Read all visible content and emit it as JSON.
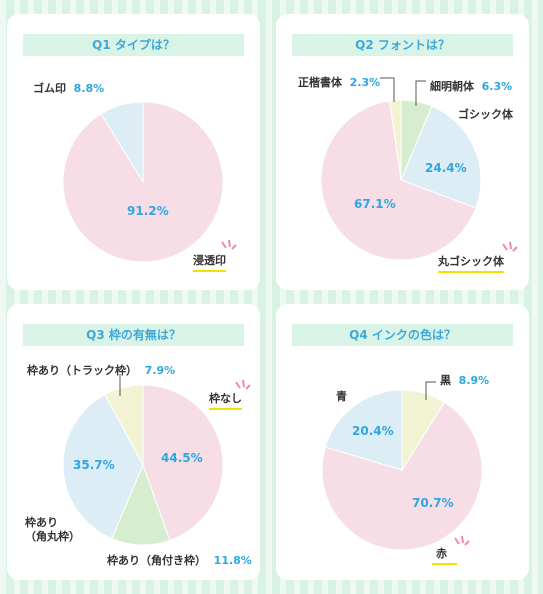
{
  "colors": {
    "pink": "#f6dde6",
    "blue": "#dcedf5",
    "green": "#d7edd0",
    "yellow": "#f1f3d3",
    "text_blue": "#2ea7e0",
    "underline": "#f2e200",
    "accent_pink": "#f08aa8"
  },
  "chart_data": [
    {
      "type": "pie",
      "title": "Q1 タイプは？",
      "slices": [
        {
          "label": "浸透印",
          "value": 91.2,
          "value_text": "91.2%",
          "color": "#f6dde6"
        },
        {
          "label": "ゴム印",
          "value": 8.8,
          "value_text": "8.8%",
          "color": "#dcedf5"
        }
      ]
    },
    {
      "type": "pie",
      "title": "Q2 フォントは？",
      "slices": [
        {
          "label": "細明朝体",
          "value": 6.3,
          "value_text": "6.3%",
          "color": "#d7edd0"
        },
        {
          "label": "ゴシック体",
          "value": 24.4,
          "value_text": "24.4%",
          "color": "#dcedf5"
        },
        {
          "label": "丸ゴシック体",
          "value": 67.1,
          "value_text": "67.1%",
          "color": "#f6dde6"
        },
        {
          "label": "正楷書体",
          "value": 2.3,
          "value_text": "2.3%",
          "color": "#f1f3d3"
        }
      ]
    },
    {
      "type": "pie",
      "title": "Q3 枠の有無は？",
      "slices": [
        {
          "label": "枠なし",
          "value": 44.5,
          "value_text": "44.5%",
          "color": "#f6dde6"
        },
        {
          "label": "枠あり（角付き枠）",
          "value": 11.8,
          "value_text": "11.8%",
          "color": "#d7edd0"
        },
        {
          "label": "枠あり（角丸枠）",
          "label_lines": [
            "枠あり",
            "（角丸枠）"
          ],
          "value": 35.7,
          "value_text": "35.7%",
          "color": "#dcedf5"
        },
        {
          "label": "枠あり（トラック枠）",
          "value": 7.9,
          "value_text": "7.9%",
          "color": "#f1f3d3"
        }
      ]
    },
    {
      "type": "pie",
      "title": "Q4 インクの色は？",
      "slices": [
        {
          "label": "黒",
          "value": 8.9,
          "value_text": "8.9%",
          "color": "#f1f3d3"
        },
        {
          "label": "赤",
          "value": 70.7,
          "value_text": "70.7%",
          "color": "#f6dde6"
        },
        {
          "label": "青",
          "value": 20.4,
          "value_text": "20.4%",
          "color": "#dcedf5"
        }
      ]
    }
  ]
}
